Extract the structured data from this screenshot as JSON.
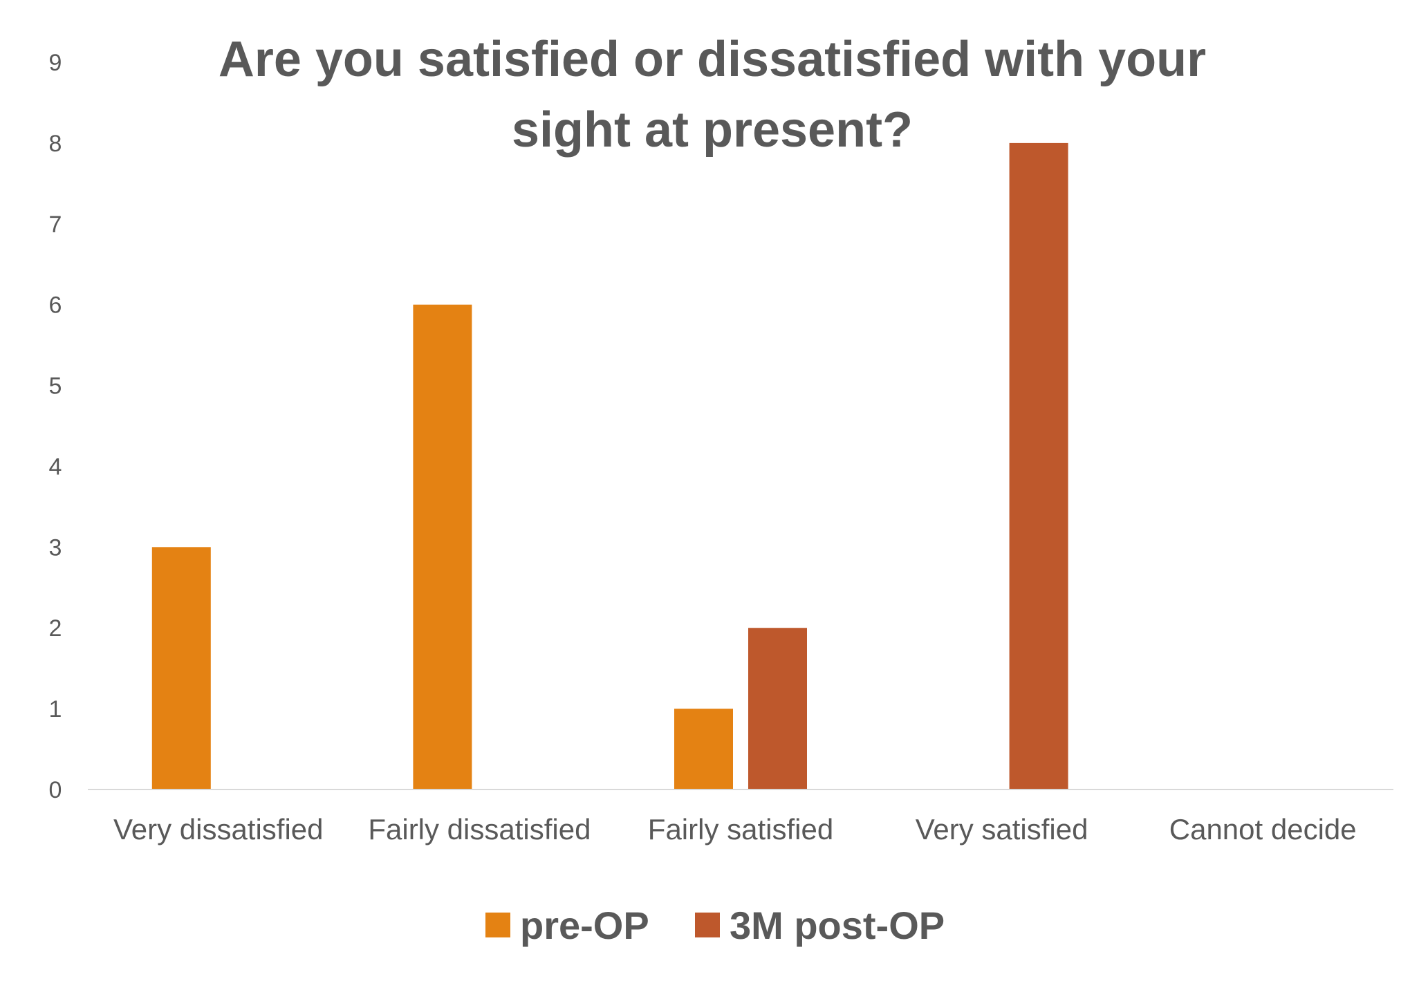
{
  "chart_data": {
    "type": "bar",
    "title_lines": [
      "Are you satisfied or dissatisfied with your",
      "sight at present?"
    ],
    "categories": [
      "Very dissatisfied",
      "Fairly dissatisfied",
      "Fairly satisfied",
      "Very satisfied",
      "Cannot decide"
    ],
    "series": [
      {
        "name": "pre-OP",
        "values": [
          3,
          6,
          1,
          0,
          0
        ]
      },
      {
        "name": "3M post-OP",
        "values": [
          0,
          0,
          2,
          8,
          0
        ]
      }
    ],
    "ylim": [
      0,
      9
    ],
    "yticks": [
      "0",
      "1",
      "2",
      "3",
      "4",
      "5",
      "6",
      "7",
      "8",
      "9"
    ],
    "xlabel": "",
    "ylabel": "",
    "legend_position": "bottom",
    "colors": {
      "pre-OP": "#E48213",
      "3M post-OP": "#BE582C"
    },
    "axis_color": "#D9D9D9"
  }
}
